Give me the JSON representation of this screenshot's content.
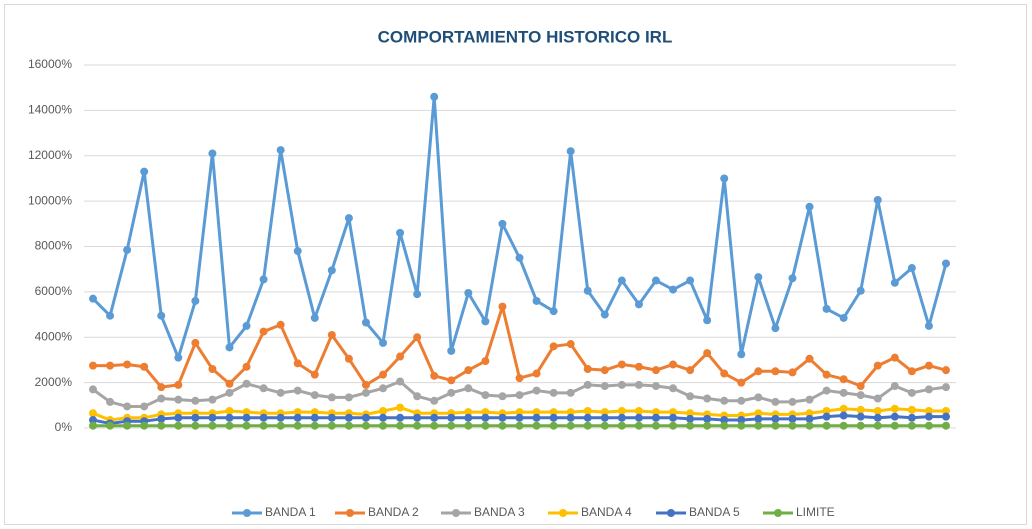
{
  "chart_data": {
    "type": "line",
    "title": "COMPORTAMIENTO HISTORICO IRL",
    "ylim": [
      0,
      16000
    ],
    "yticks": [
      {
        "value": 0,
        "label": "0%"
      },
      {
        "value": 2000,
        "label": "2000%"
      },
      {
        "value": 4000,
        "label": "4000%"
      },
      {
        "value": 6000,
        "label": "6000%"
      },
      {
        "value": 8000,
        "label": "8000%"
      },
      {
        "value": 10000,
        "label": "10000%"
      },
      {
        "value": 12000,
        "label": "12000%"
      },
      {
        "value": 14000,
        "label": "14000%"
      },
      {
        "value": 16000,
        "label": "16000%"
      }
    ],
    "grid": true,
    "legend": "bottom",
    "series": [
      {
        "name": "BANDA 1",
        "color": "#5b9bd5",
        "values": [
          5700,
          4950,
          7850,
          11300,
          4950,
          3100,
          5600,
          12100,
          3550,
          4500,
          6550,
          12250,
          7800,
          4850,
          6950,
          9250,
          4650,
          3750,
          8600,
          5900,
          14600,
          3400,
          5950,
          4700,
          9000,
          7500,
          5600,
          5150,
          12200,
          6050,
          5000,
          6500,
          5450,
          6500,
          6100,
          6500,
          4750,
          11000,
          3250,
          6650,
          4400,
          6600,
          9750,
          5250,
          4850,
          6050,
          10050,
          6400,
          7050,
          4500,
          7250
        ]
      },
      {
        "name": "BANDA 2",
        "color": "#ed7d31",
        "values": [
          2750,
          2750,
          2800,
          2700,
          1800,
          1900,
          3750,
          2600,
          1950,
          2700,
          4250,
          4550,
          2850,
          2350,
          4100,
          3050,
          1900,
          2350,
          3150,
          4000,
          2300,
          2100,
          2550,
          2950,
          5350,
          2200,
          2400,
          3600,
          3700,
          2600,
          2550,
          2800,
          2700,
          2550,
          2800,
          2550,
          3300,
          2400,
          2000,
          2500,
          2500,
          2450,
          3050,
          2350,
          2150,
          1850,
          2750,
          3100,
          2500,
          2750,
          2550
        ]
      },
      {
        "name": "BANDA 3",
        "color": "#a5a5a5",
        "values": [
          1700,
          1150,
          950,
          950,
          1300,
          1250,
          1200,
          1250,
          1550,
          1950,
          1750,
          1550,
          1650,
          1450,
          1350,
          1350,
          1550,
          1750,
          2050,
          1400,
          1200,
          1550,
          1750,
          1450,
          1400,
          1450,
          1650,
          1550,
          1550,
          1900,
          1850,
          1900,
          1900,
          1850,
          1750,
          1400,
          1300,
          1200,
          1200,
          1350,
          1150,
          1150,
          1250,
          1650,
          1550,
          1450,
          1300,
          1850,
          1550,
          1700,
          1800
        ]
      },
      {
        "name": "BANDA 4",
        "color": "#ffc000",
        "values": [
          650,
          350,
          450,
          450,
          600,
          650,
          650,
          650,
          750,
          700,
          650,
          650,
          700,
          700,
          650,
          650,
          600,
          750,
          900,
          650,
          650,
          650,
          700,
          700,
          650,
          700,
          700,
          700,
          700,
          750,
          700,
          750,
          750,
          700,
          700,
          650,
          600,
          550,
          550,
          650,
          600,
          600,
          650,
          750,
          850,
          800,
          750,
          850,
          800,
          750,
          750
        ]
      },
      {
        "name": "BANDA 5",
        "color": "#4472c4",
        "values": [
          350,
          200,
          300,
          300,
          400,
          450,
          450,
          450,
          450,
          450,
          450,
          450,
          450,
          450,
          450,
          450,
          450,
          450,
          450,
          450,
          450,
          450,
          450,
          450,
          450,
          450,
          450,
          450,
          450,
          450,
          450,
          450,
          450,
          450,
          450,
          400,
          400,
          350,
          350,
          400,
          400,
          400,
          400,
          500,
          550,
          500,
          450,
          500,
          450,
          500,
          500
        ]
      },
      {
        "name": "LIMITE",
        "color": "#70ad47",
        "values": [
          100,
          100,
          100,
          100,
          100,
          100,
          100,
          100,
          100,
          100,
          100,
          100,
          100,
          100,
          100,
          100,
          100,
          100,
          100,
          100,
          100,
          100,
          100,
          100,
          100,
          100,
          100,
          100,
          100,
          100,
          100,
          100,
          100,
          100,
          100,
          100,
          100,
          100,
          100,
          100,
          100,
          100,
          100,
          100,
          100,
          100,
          100,
          100,
          100,
          100,
          100
        ]
      }
    ]
  }
}
